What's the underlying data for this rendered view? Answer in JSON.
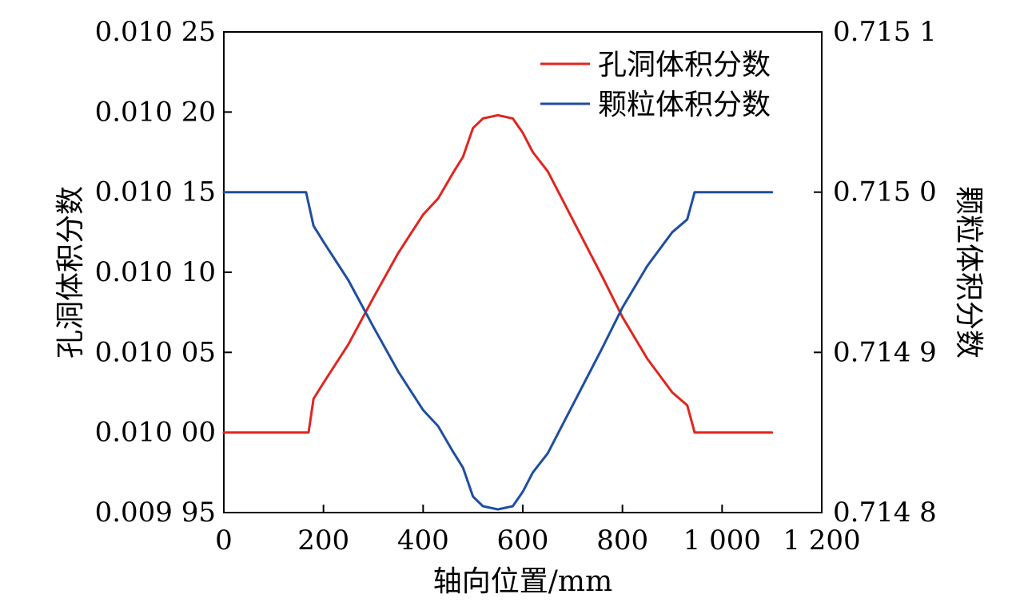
{
  "chart_data": {
    "type": "line",
    "title": "",
    "xlabel": "轴向位置/mm",
    "ylabel_left": "孔洞体积分数",
    "ylabel_right": "颗粒体积分数",
    "x_ticks": [
      {
        "value": 0,
        "label": "0"
      },
      {
        "value": 200,
        "label": "200"
      },
      {
        "value": 400,
        "label": "400"
      },
      {
        "value": 600,
        "label": "600"
      },
      {
        "value": 800,
        "label": "800"
      },
      {
        "value": 1000,
        "label": "1 000"
      },
      {
        "value": 1200,
        "label": "1 200"
      }
    ],
    "y_left_ticks": [
      {
        "value": 0.00995,
        "label": "0.009 95"
      },
      {
        "value": 0.01,
        "label": "0.010 00"
      },
      {
        "value": 0.01005,
        "label": "0.010 05"
      },
      {
        "value": 0.0101,
        "label": "0.010 10"
      },
      {
        "value": 0.01015,
        "label": "0.010 15"
      },
      {
        "value": 0.0102,
        "label": "0.010 20"
      },
      {
        "value": 0.01025,
        "label": "0.010 25"
      }
    ],
    "y_right_ticks": [
      {
        "value": 0.7148,
        "label": "0.714 8"
      },
      {
        "value": 0.7149,
        "label": "0.714 9"
      },
      {
        "value": 0.715,
        "label": "0.715 0"
      },
      {
        "value": 0.7151,
        "label": "0.715 1"
      }
    ],
    "xlim": [
      0,
      1200
    ],
    "ylim_left": [
      0.00995,
      0.01025
    ],
    "ylim_right": [
      0.7148,
      0.7151
    ],
    "legend_position": "top-right",
    "grid": false,
    "series": [
      {
        "name": "孔洞体积分数",
        "axis": "left",
        "color": "#e0251f",
        "x": [
          0,
          170,
          180,
          200,
          250,
          300,
          350,
          400,
          430,
          460,
          480,
          500,
          520,
          550,
          580,
          600,
          620,
          650,
          680,
          720,
          760,
          800,
          850,
          900,
          930,
          945,
          1100
        ],
        "y": [
          0.01,
          0.01,
          0.010021,
          0.010031,
          0.010055,
          0.010084,
          0.010112,
          0.010136,
          0.010146,
          0.010162,
          0.010172,
          0.01019,
          0.010196,
          0.010198,
          0.010196,
          0.010187,
          0.010175,
          0.010163,
          0.010145,
          0.010121,
          0.010097,
          0.010072,
          0.010046,
          0.010025,
          0.010017,
          0.01,
          0.01
        ]
      },
      {
        "name": "颗粒体积分数",
        "axis": "right",
        "color": "#1f4ea1",
        "x": [
          0,
          165,
          180,
          200,
          250,
          300,
          350,
          400,
          430,
          460,
          480,
          500,
          520,
          550,
          580,
          600,
          620,
          650,
          680,
          720,
          760,
          800,
          850,
          900,
          930,
          945,
          1100
        ],
        "y": [
          0.715,
          0.715,
          0.714979,
          0.714969,
          0.714945,
          0.714916,
          0.714888,
          0.714864,
          0.714854,
          0.714838,
          0.714828,
          0.71481,
          0.714804,
          0.714802,
          0.714804,
          0.714813,
          0.714825,
          0.714837,
          0.714855,
          0.714879,
          0.714903,
          0.714928,
          0.714954,
          0.714975,
          0.714983,
          0.715,
          0.715
        ]
      }
    ]
  }
}
